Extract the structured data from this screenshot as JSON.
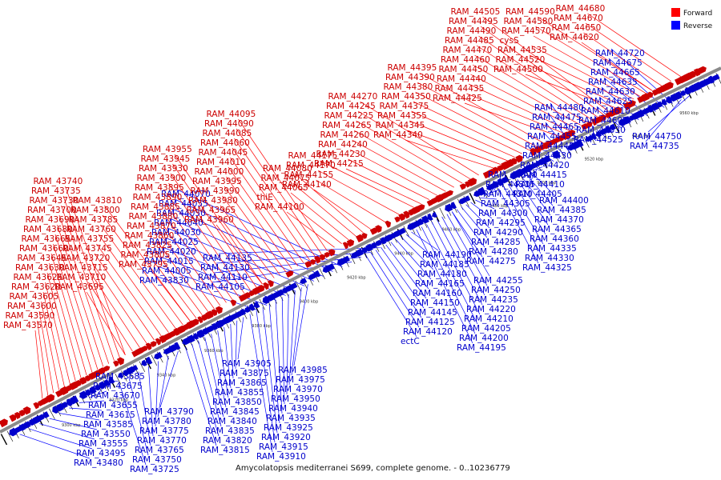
{
  "caption": "Amycolatopsis mediterranei S699, complete genome. - 0..10236779",
  "legend": [
    {
      "label": "Forward",
      "color": "#ff0000"
    },
    {
      "label": "Reverse",
      "color": "#0000ff"
    }
  ],
  "colors": {
    "forward": "#cc0000",
    "reverse": "#0000cc",
    "backbone": "#888888"
  },
  "ticks": [
    "9300 kbp",
    "9320 kbp",
    "9340 kbp",
    "9360 kbp",
    "9380 kbp",
    "9400 kbp",
    "9420 kbp",
    "9440 kbp",
    "9460 kbp",
    "9480 kbp",
    "9500 kbp",
    "9520 kbp",
    "9540 kbp",
    "9560 kbp"
  ],
  "forward_groups": [
    {
      "labels": [
        "RAM_43570",
        "RAM_43590",
        "RAM_43600",
        "RAM_43605",
        "RAM_43620",
        "RAM_43625",
        "RAM_43630",
        "RAM_43645",
        "RAM_43660",
        "RAM_43665",
        "RAM_43680",
        "RAM_43690",
        "RAM_43700",
        "RAM_43730",
        "RAM_43735",
        "RAM_43740"
      ]
    },
    {
      "labels": [
        "RAM_43695",
        "RAM_43710",
        "RAM_43715",
        "RAM_43720",
        "RAM_43745",
        "RAM_43755",
        "RAM_43760",
        "RAM_43785",
        "RAM_43800",
        "RAM_43810"
      ]
    },
    {
      "labels": [
        "RAM_43795",
        "RAM_43805",
        "RAM_43825",
        "RAM_43860",
        "RAM_43870",
        "RAM_43880",
        "RAM_43885",
        "RAM_43890",
        "RAM_43895",
        "RAM_43900",
        "RAM_43930",
        "RAM_43945",
        "RAM_43955"
      ]
    },
    {
      "labels": [
        "RAM_43960",
        "RAM_43965",
        "RAM_43980",
        "RAM_43990",
        "RAM_43995",
        "RAM_44000",
        "RAM_44010",
        "RAM_44045",
        "RAM_44060",
        "RAM_44085",
        "RAM_44090",
        "RAM_44095"
      ]
    },
    {
      "labels": [
        "RAM_44100",
        "thiE",
        "RAM_44065",
        "RAM_44075",
        "RAM_44080"
      ]
    },
    {
      "labels": [
        "RAM_44140",
        "RAM_44155",
        "RAM_44170",
        "RAM_44175"
      ]
    },
    {
      "labels": [
        "RAM_44215",
        "RAM_44230",
        "RAM_44240",
        "RAM_44260",
        "RAM_44265",
        "RAM_44225",
        "RAM_44245",
        "RAM_44270"
      ]
    },
    {
      "labels": [
        "RAM_44340",
        "RAM_44345",
        "RAM_44355",
        "RAM_44375",
        "RAM_44350",
        "RAM_44380",
        "RAM_44390",
        "RAM_44395"
      ]
    },
    {
      "labels": [
        "RAM_44425",
        "RAM_44435",
        "RAM_44440",
        "RAM_44450",
        "RAM_44460",
        "RAM_44470",
        "RAM_44485",
        "RAM_44490",
        "RAM_44495",
        "RAM_44505"
      ]
    },
    {
      "labels": [
        "RAM_44500",
        "RAM_44520",
        "RAM_44535",
        "cysS",
        "RAM_44570",
        "RAM_44580",
        "RAM_44590"
      ]
    },
    {
      "labels": [
        "RAM_44620",
        "RAM_44650",
        "RAM_44670",
        "RAM_44680"
      ]
    }
  ],
  "reverse_groups": [
    {
      "labels": [
        "RAM_43480",
        "RAM_43495",
        "RAM_43555",
        "RAM_43550",
        "RAM_43585",
        "RAM_43615",
        "RAM_43655",
        "RAM_43670",
        "RAM_43675",
        "RAM_43685",
        "RAM_43725",
        "RAM_43750",
        "RAM_43765",
        "RAM_43770",
        "RAM_43775",
        "RAM_43780",
        "RAM_43790"
      ]
    },
    {
      "labels": [
        "RAM_43815",
        "RAM_43820",
        "RAM_43835",
        "RAM_43840",
        "RAM_43845",
        "RAM_43850",
        "RAM_43855",
        "RAM_43865",
        "RAM_43875",
        "RAM_43905",
        "RAM_43910",
        "RAM_43915",
        "RAM_43920",
        "RAM_43925",
        "RAM_43935",
        "RAM_43940",
        "RAM_43950",
        "RAM_43970",
        "RAM_43975",
        "RAM_43985"
      ]
    },
    {
      "labels": [
        "RAM_43830",
        "RAM_44005",
        "RAM_44015",
        "RAM_44020",
        "RAM_44025",
        "RAM_44030",
        "RAM_44040",
        "RAM_44050",
        "RAM_44055",
        "RAM_44070",
        "RAM_44105",
        "RAM_44110",
        "RAM_44130",
        "RAM_44135"
      ]
    },
    {
      "labels": [
        "ectC",
        "RAM_44120",
        "RAM_44125",
        "RAM_44145",
        "RAM_44150",
        "RAM_44160",
        "RAM_44165",
        "RAM_44180",
        "RAM_44185",
        "RAM_44190",
        "RAM_44195",
        "RAM_44200",
        "RAM_44205",
        "RAM_44210",
        "RAM_44220",
        "RAM_44235",
        "RAM_44250",
        "RAM_44255"
      ]
    },
    {
      "labels": [
        "RAM_44275",
        "RAM_44280",
        "RAM_44285",
        "RAM_44290",
        "RAM_44295",
        "RAM_44300",
        "RAM_44305",
        "RAM_44310",
        "RAM_44315",
        "RAM_44320",
        "RAM_44325",
        "RAM_44330",
        "RAM_44335",
        "RAM_44360",
        "RAM_44365",
        "RAM_44370",
        "RAM_44385",
        "RAM_44400"
      ]
    },
    {
      "labels": [
        "RAM_44405",
        "RAM_44410",
        "RAM_44415",
        "RAM_44420",
        "RAM_44430",
        "RAM_44445",
        "RAM_44455",
        "RAM_44465",
        "RAM_44475",
        "RAM_44480"
      ]
    },
    {
      "labels": [
        "RAM_44525",
        "RAM_44530",
        "RAM_44605",
        "RAM_44610",
        "RAM_44625",
        "RAM_44630",
        "RAM_44635",
        "RAM_44665",
        "RAM_44675",
        "RAM_44720",
        "RAM_44735",
        "RAM_44750"
      ]
    }
  ]
}
